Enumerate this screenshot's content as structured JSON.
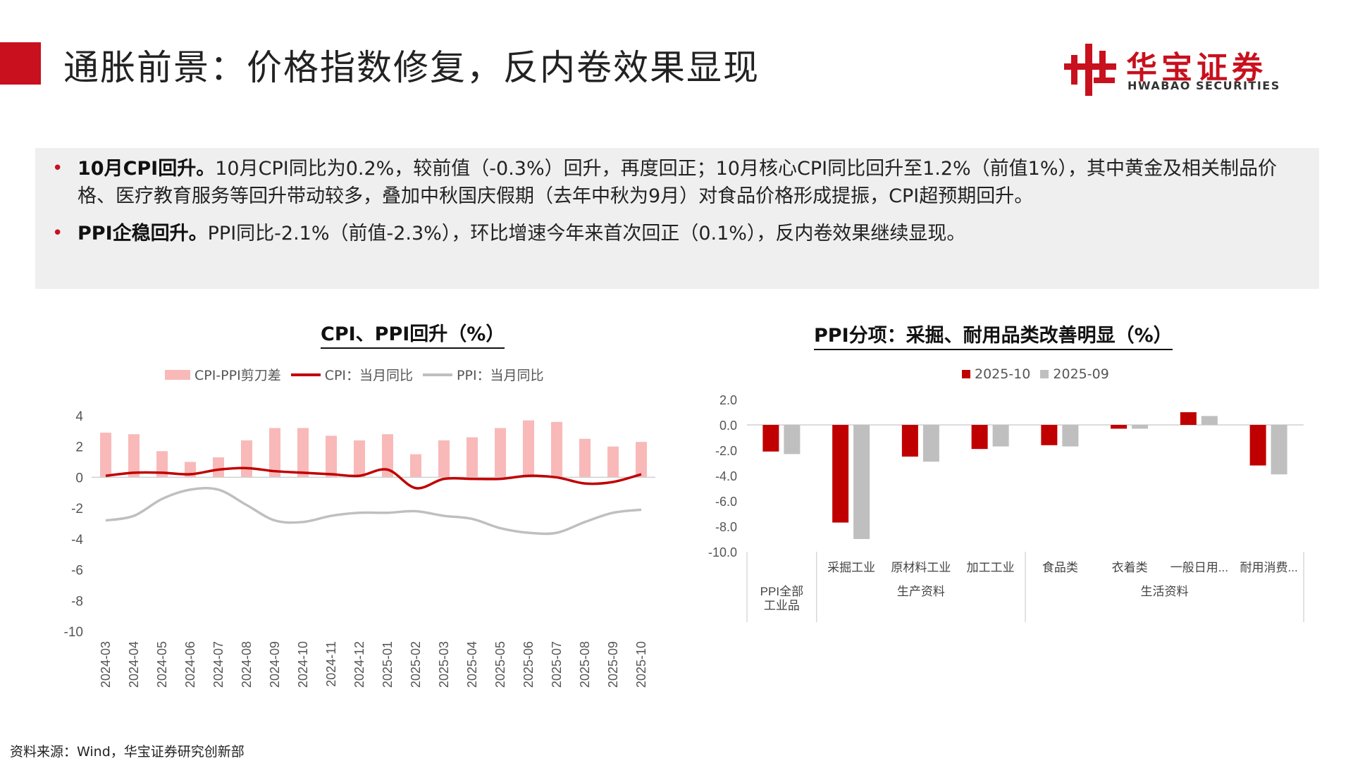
{
  "header": {
    "title": "通胀前景：价格指数修复，反内卷效果显现",
    "logo_cn": "华宝证券",
    "logo_en": "HWABAO SECURITIES"
  },
  "summary": {
    "bullet_1_head": "10月CPI回升。",
    "bullet_1_body": "10月CPI同比为0.2%，较前值（-0.3%）回升，再度回正；10月核心CPI同比回升至1.2%（前值1%），其中黄金及相关制品价格、医疗教育服务等回升带动较多，叠加中秋国庆假期（去年中秋为9月）对食品价格形成提振，CPI超预期回升。",
    "bullet_2_head": "PPI企稳回升。",
    "bullet_2_body": "PPI同比-2.1%（前值-2.3%），环比增速今年来首次回正（0.1%），反内卷效果继续显现。"
  },
  "chart_data": [
    {
      "type": "bar+line",
      "title": "CPI、PPI回升（%）",
      "legend": [
        "CPI-PPI剪刀差",
        "CPI：当月同比",
        "PPI：当月同比"
      ],
      "colors": {
        "gap": "#f9b9b9",
        "cpi": "#c00000",
        "ppi": "#bfbfbf"
      },
      "categories": [
        "2024-03",
        "2024-04",
        "2024-05",
        "2024-06",
        "2024-07",
        "2024-08",
        "2024-09",
        "2024-10",
        "2024-11",
        "2024-12",
        "2025-01",
        "2025-02",
        "2025-03",
        "2025-04",
        "2025-05",
        "2025-06",
        "2025-07",
        "2025-08",
        "2025-09",
        "2025-10"
      ],
      "series": [
        {
          "name": "CPI-PPI剪刀差",
          "kind": "bar",
          "values": [
            2.9,
            2.8,
            1.7,
            1.0,
            1.3,
            2.4,
            3.2,
            3.2,
            2.7,
            2.4,
            2.8,
            1.5,
            2.4,
            2.6,
            3.2,
            3.7,
            3.6,
            2.5,
            2.0,
            2.3
          ]
        },
        {
          "name": "CPI：当月同比",
          "kind": "line",
          "values": [
            0.1,
            0.3,
            0.3,
            0.2,
            0.5,
            0.6,
            0.4,
            0.3,
            0.2,
            0.1,
            0.5,
            -0.7,
            -0.1,
            -0.1,
            -0.1,
            0.1,
            0.0,
            -0.4,
            -0.3,
            0.2
          ]
        },
        {
          "name": "PPI：当月同比",
          "kind": "line",
          "values": [
            -2.8,
            -2.5,
            -1.4,
            -0.8,
            -0.8,
            -1.8,
            -2.8,
            -2.9,
            -2.5,
            -2.3,
            -2.3,
            -2.2,
            -2.5,
            -2.7,
            -3.3,
            -3.6,
            -3.6,
            -2.9,
            -2.3,
            -2.1
          ]
        }
      ],
      "ylim": [
        -10,
        4
      ],
      "yticks": [
        "4",
        "2",
        "0",
        "-2",
        "-4",
        "-6",
        "-8",
        "-10"
      ]
    },
    {
      "type": "bar",
      "title": "PPI分项：采掘、耐用品类改善明显（%）",
      "legend": [
        "2025-10",
        "2025-09"
      ],
      "colors": {
        "2025-10": "#c00000",
        "2025-09": "#bfbfbf"
      },
      "categories": [
        "PPI全部工业品",
        "采掘工业",
        "原材料工业",
        "加工工业",
        "食品类",
        "衣着类",
        "一般日用...",
        "耐用消费..."
      ],
      "groups": [
        {
          "label": "生产资料",
          "members": [
            "采掘工业",
            "原材料工业",
            "加工工业"
          ]
        },
        {
          "label": "生活资料",
          "members": [
            "食品类",
            "衣着类",
            "一般日用...",
            "耐用消费..."
          ]
        }
      ],
      "series": [
        {
          "name": "2025-10",
          "values": [
            -2.1,
            -7.7,
            -2.5,
            -1.9,
            -1.6,
            -0.3,
            1.0,
            -3.2
          ]
        },
        {
          "name": "2025-09",
          "values": [
            -2.3,
            -9.0,
            -2.9,
            -1.7,
            -1.7,
            -0.3,
            0.7,
            -3.9
          ]
        }
      ],
      "ylim": [
        -10,
        2
      ],
      "yticks": [
        "2.0",
        "0.0",
        "-2.0",
        "-4.0",
        "-6.0",
        "-8.0",
        "-10.0"
      ]
    }
  ],
  "footer": {
    "source": "资料来源：Wind，华宝证券研究创新部"
  }
}
